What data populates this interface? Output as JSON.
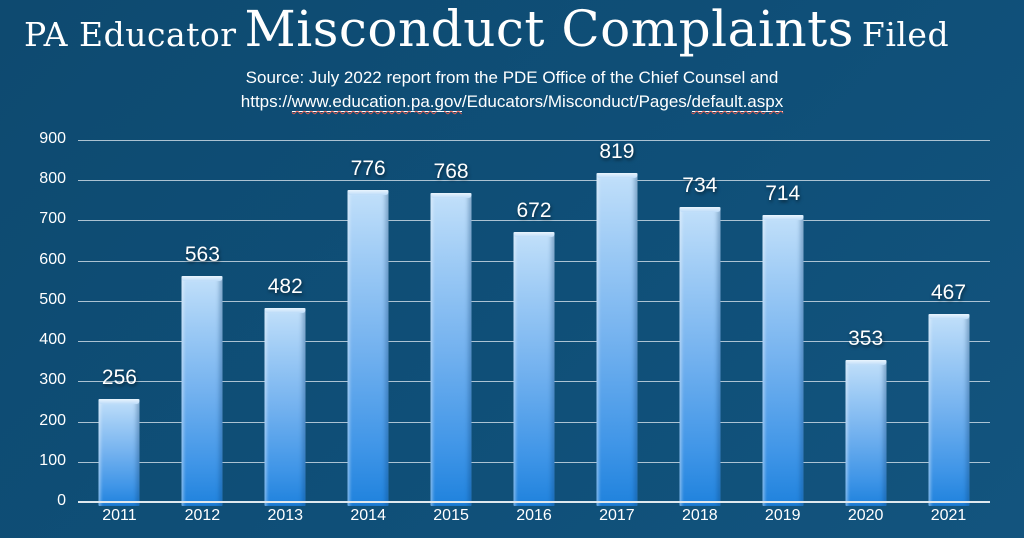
{
  "title": {
    "prefix": "PA Educator",
    "emphasis": "Misconduct Complaints",
    "suffix": "Filed"
  },
  "source": {
    "line1": "Source: July 2022 report from the PDE Office of the Chief Counsel and",
    "url_prefix": "https://",
    "url_domain": "www.education.pa.gov",
    "url_path": "/Educators/Misconduct/Pages/",
    "url_file": "default.aspx"
  },
  "chart_data": {
    "type": "bar",
    "title": "PA Educator Misconduct Complaints Filed",
    "categories": [
      "2011",
      "2012",
      "2013",
      "2014",
      "2015",
      "2016",
      "2017",
      "2018",
      "2019",
      "2020",
      "2021"
    ],
    "values": [
      256,
      563,
      482,
      776,
      768,
      672,
      819,
      734,
      714,
      353,
      467
    ],
    "xlabel": "",
    "ylabel": "",
    "ylim": [
      0,
      900
    ],
    "ytick_interval": 100,
    "grid": true,
    "legend": "none",
    "colors": {
      "background": "#0f4f78",
      "bar_top": "#c2e0fa",
      "bar_bottom": "#1f82dd",
      "gridline": "#e0e9f1",
      "text": "#ffffff"
    }
  }
}
